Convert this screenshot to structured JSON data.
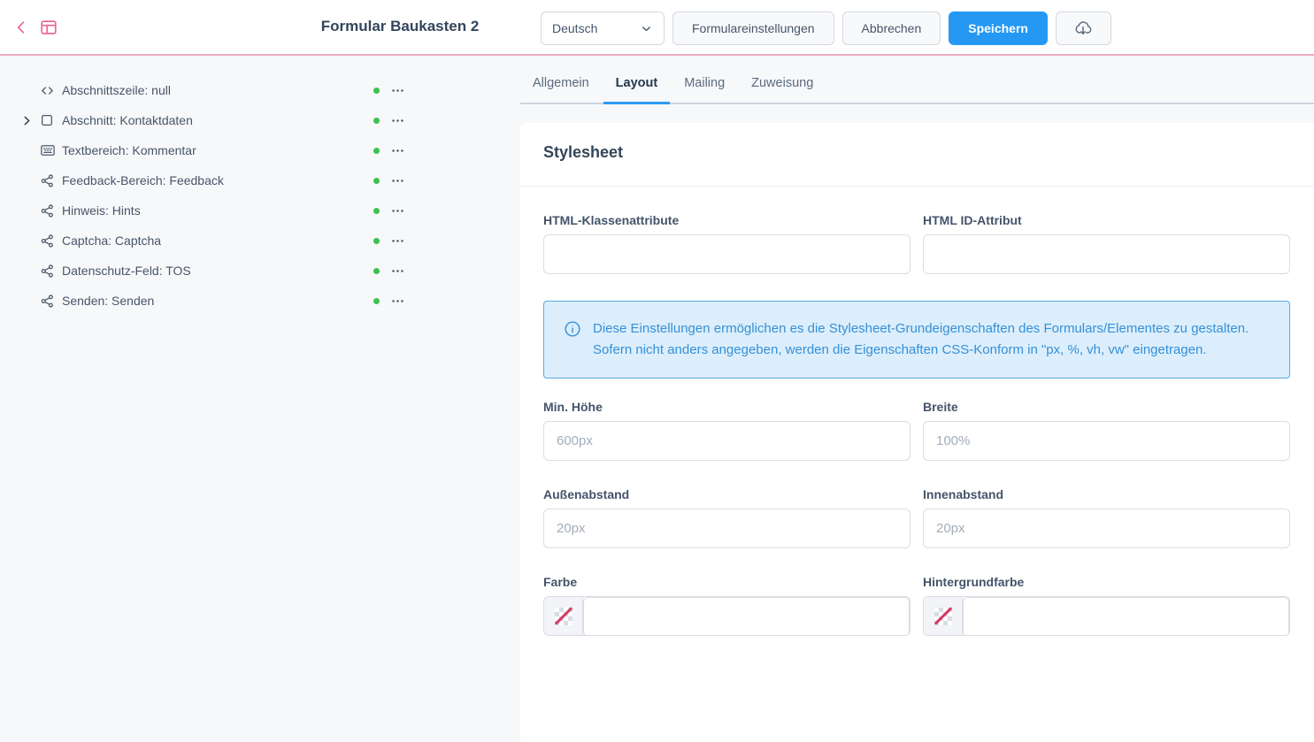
{
  "header": {
    "title": "Formular Baukasten 2",
    "language_selected": "Deutsch",
    "form_settings_label": "Formulareinstellungen",
    "cancel_label": "Abbrechen",
    "save_label": "Speichern"
  },
  "sidebar": {
    "items": [
      {
        "icon": "code-icon",
        "label": "Abschnittszeile: null",
        "expandable": false
      },
      {
        "icon": "square-icon",
        "label": "Abschnitt: Kontaktdaten",
        "expandable": true
      },
      {
        "icon": "textarea-icon",
        "label": "Textbereich: Kommentar",
        "expandable": false
      },
      {
        "icon": "share-icon",
        "label": "Feedback-Bereich: Feedback",
        "expandable": false
      },
      {
        "icon": "share-icon",
        "label": "Hinweis: Hints",
        "expandable": false
      },
      {
        "icon": "share-icon",
        "label": "Captcha: Captcha",
        "expandable": false
      },
      {
        "icon": "share-icon",
        "label": "Datenschutz-Feld: TOS",
        "expandable": false
      },
      {
        "icon": "share-icon",
        "label": "Senden: Senden",
        "expandable": false
      }
    ]
  },
  "tabs": [
    {
      "label": "Allgemein",
      "active": false
    },
    {
      "label": "Layout",
      "active": true
    },
    {
      "label": "Mailing",
      "active": false
    },
    {
      "label": "Zuweisung",
      "active": false
    }
  ],
  "panel": {
    "heading": "Stylesheet",
    "info_text": "Diese Einstellungen ermöglichen es die Stylesheet-Grundeigenschaften des Formulars/Elementes zu gestalten. Sofern nicht anders angegeben, werden die Eigenschaften CSS-Konform in \"px, %, vh, vw\" eingetragen.",
    "fields": {
      "html_class": {
        "label": "HTML-Klassenattribute",
        "value": "",
        "placeholder": ""
      },
      "html_id": {
        "label": "HTML ID-Attribut",
        "value": "",
        "placeholder": ""
      },
      "min_height": {
        "label": "Min. Höhe",
        "value": "",
        "placeholder": "600px"
      },
      "width": {
        "label": "Breite",
        "value": "",
        "placeholder": "100%"
      },
      "margin": {
        "label": "Außenabstand",
        "value": "",
        "placeholder": "20px"
      },
      "padding": {
        "label": "Innenabstand",
        "value": "",
        "placeholder": "20px"
      },
      "color": {
        "label": "Farbe",
        "value": ""
      },
      "bg_color": {
        "label": "Hintergrundfarbe",
        "value": ""
      }
    }
  },
  "colors": {
    "accent_pink": "#ee6596",
    "header_border": "#f0a9c5",
    "save_blue": "#2598f4",
    "tab_underline_blue": "#2d9cf3",
    "status_green": "#3bc24f",
    "info_blue": "#3590d8",
    "info_bg": "#dceefb",
    "no_color_slash": "#d63a63"
  }
}
